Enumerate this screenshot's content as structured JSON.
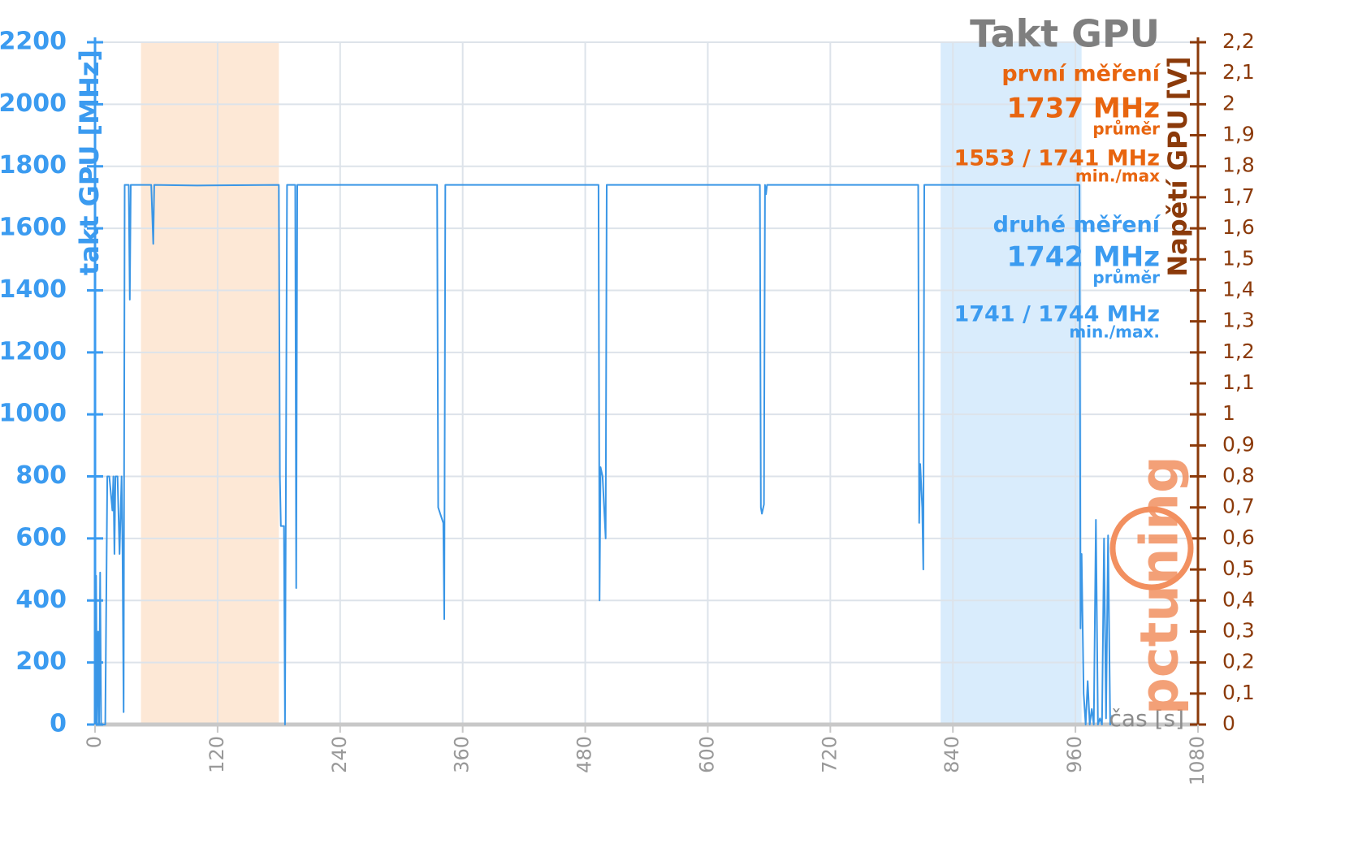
{
  "chart_data": {
    "type": "line",
    "annotations": [
      {
        "text": "Takt GPU",
        "color": "#7f7f7f"
      },
      {
        "text": "první měření",
        "color": "#e8650f"
      },
      {
        "text": "1737 MHz",
        "color": "#e8650f"
      },
      {
        "text": "průměr",
        "color": "#e8650f"
      },
      {
        "text": "1553 / 1741 MHz",
        "color": "#e8650f"
      },
      {
        "text": "min./max",
        "color": "#e8650f"
      },
      {
        "text": "druhé měření",
        "color": "#3b9bf0"
      },
      {
        "text": "1742 MHz",
        "color": "#3b9bf0"
      },
      {
        "text": "průměr",
        "color": "#3b9bf0"
      },
      {
        "text": "1741 / 1744 MHz",
        "color": "#3b9bf0"
      },
      {
        "text": "min./max.",
        "color": "#3b9bf0"
      }
    ],
    "ylabel": "takt GPU [MHz]",
    "y2label": "Napětí GPU [V]",
    "xlabel": "čas [s]",
    "logo": "pctuning",
    "highlight_ranges": [
      {
        "from": 45,
        "to": 180,
        "color": "#fde8d6"
      },
      {
        "from": 828,
        "to": 966,
        "color": "#d9ecfc"
      }
    ],
    "series": [
      {
        "name": "takt GPU",
        "color": "#3a96e6",
        "axis": "y",
        "x": [
          0,
          1,
          2,
          3,
          4,
          5,
          6,
          8,
          10,
          12,
          14,
          17,
          18,
          19,
          20,
          22,
          24,
          26,
          27,
          28,
          29,
          33,
          34,
          35,
          55,
          57,
          58,
          100,
          180,
          181,
          182,
          185,
          186,
          188,
          196,
          197,
          198,
          335,
          336,
          338,
          341,
          342,
          343,
          493,
          494,
          495,
          497,
          500,
          501,
          651,
          652,
          653,
          655,
          656,
          657,
          658,
          806,
          807,
          808,
          810,
          811,
          812,
          964,
          965,
          966,
          968,
          970,
          972,
          974,
          976,
          978,
          980,
          982,
          984,
          986,
          988,
          990,
          992,
          994,
          996
        ],
        "values": [
          0,
          480,
          0,
          300,
          0,
          490,
          0,
          0,
          0,
          800,
          800,
          690,
          800,
          550,
          800,
          800,
          550,
          800,
          550,
          40,
          1740,
          1740,
          1370,
          1740,
          1740,
          1550,
          1740,
          1738,
          1740,
          800,
          640,
          640,
          0,
          1740,
          1740,
          440,
          1740,
          1740,
          700,
          680,
          650,
          340,
          1740,
          1740,
          400,
          830,
          800,
          600,
          1740,
          1740,
          700,
          680,
          710,
          1740,
          1710,
          1740,
          1740,
          650,
          840,
          700,
          500,
          1740,
          1740,
          310,
          550,
          100,
          0,
          140,
          0,
          50,
          0,
          660,
          0,
          20,
          0,
          600,
          20,
          610,
          0,
          30
        ]
      }
    ],
    "xlim": [
      0,
      1080
    ],
    "xticks": [
      0,
      120,
      240,
      360,
      480,
      600,
      720,
      840,
      960,
      1080
    ],
    "ylim": [
      0,
      2200
    ],
    "yticks": [
      0,
      200,
      400,
      600,
      800,
      1000,
      1200,
      1400,
      1600,
      1800,
      2000,
      2200
    ],
    "y2lim": [
      0,
      2.2
    ],
    "y2ticks": [
      0,
      {
        "value": 0.1,
        "label": "0,1"
      },
      {
        "value": 0.2,
        "label": "0,2"
      },
      {
        "value": 0.3,
        "label": "0,3"
      },
      {
        "value": 0.4,
        "label": "0,4"
      },
      {
        "value": 0.5,
        "label": "0,5"
      },
      {
        "value": 0.6,
        "label": "0,6"
      },
      {
        "value": 0.7,
        "label": "0,7"
      },
      {
        "value": 0.8,
        "label": "0,8"
      },
      {
        "value": 0.9,
        "label": "0,9"
      },
      1,
      {
        "value": 1.1,
        "label": "1,1"
      },
      {
        "value": 1.2,
        "label": "1,2"
      },
      {
        "value": 1.3,
        "label": "1,3"
      },
      {
        "value": 1.4,
        "label": "1,4"
      },
      {
        "value": 1.5,
        "label": "1,5"
      },
      {
        "value": 1.6,
        "label": "1,6"
      },
      {
        "value": 1.7,
        "label": "1,7"
      },
      {
        "value": 1.8,
        "label": "1,8"
      },
      {
        "value": 1.9,
        "label": "1,9"
      },
      2,
      {
        "value": 2.1,
        "label": "2,1"
      },
      {
        "value": 2.2,
        "label": "2,2"
      }
    ],
    "grid": true,
    "ytick_color": "#3b9bf0",
    "y2tick_color": "#8b3a0a",
    "xtick_color": "#999999"
  }
}
